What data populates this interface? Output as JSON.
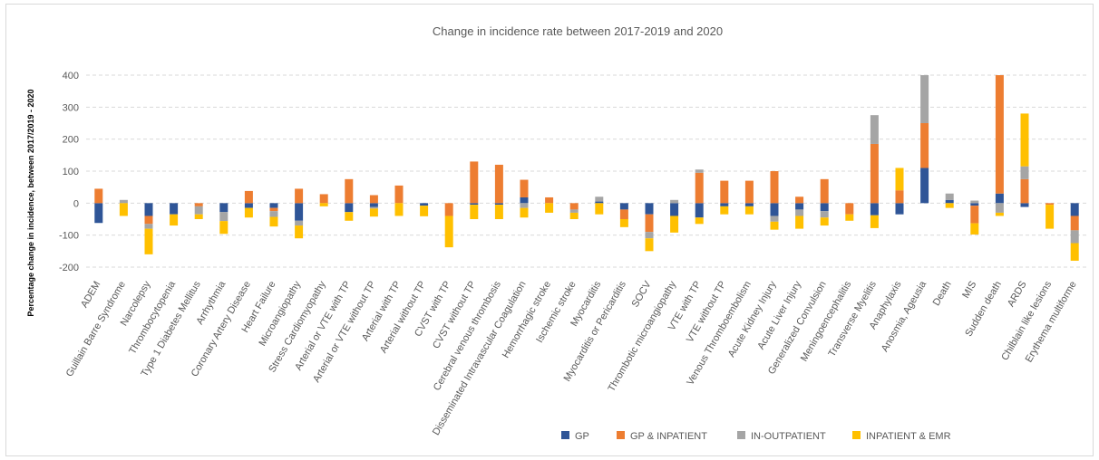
{
  "chart_data": {
    "type": "bar",
    "stacked": true,
    "title": "Change in incidence rate between 2017-2019 and 2020",
    "ylabel": "Percentage change in incidence, between 2017/2019 - 2020",
    "ylim": [
      -200,
      400
    ],
    "yticks": [
      -200,
      -100,
      0,
      100,
      200,
      300,
      400
    ],
    "grid": true,
    "legend_position": "bottom",
    "colors": {
      "GP": "#2f5597",
      "GP & INPATIENT": "#ed7d31",
      "IN-OUTPATIENT": "#a5a5a5",
      "INPATIENT & EMR": "#ffc000"
    },
    "categories": [
      "ADEM",
      "Guillain Barre Syndrome",
      "Narcolepsy",
      "Thrombocytopenia",
      "Type 1 Diabetes Mellitus",
      "Arrhythmia",
      "Coronary Artery Disease",
      "Heart Failure",
      "Microangiopathy",
      "Stress Cardiomyopathy",
      "Arterial or VTE with TP",
      "Arterial or VTE without TP",
      "Arterial with TP",
      "Arterial without TP",
      "CVST with TP",
      "CVST without TP",
      "Cerebral venous thrombosis",
      "Disseminated Intravascular Coagulation",
      "Hemorrhagic stroke",
      "Ischemic stroke",
      "Myocarditis",
      "Myocarditis or Pericarditis",
      "SOCV",
      "Thrombotic microangiopathy",
      "VTE with TP",
      "VTE without TP",
      "Venous Thromboembolism",
      "Acute Kidney Injury",
      "Acute Liver Injury",
      "Generalized Convulsion",
      "Meningoencephalitis",
      "Transverse Myelitis",
      "Anaphylaxis",
      "Anosmia, Ageusia",
      "Death",
      "MIS",
      "Sudden death",
      "ARDS",
      "Chilblain like lesions",
      "Erythema multiforme"
    ],
    "series": [
      {
        "name": "GP",
        "values": [
          -62,
          0,
          -40,
          -35,
          0,
          -28,
          -15,
          -15,
          -55,
          0,
          -28,
          -12,
          0,
          -8,
          0,
          -5,
          -5,
          18,
          0,
          0,
          5,
          -20,
          -35,
          -40,
          -45,
          -10,
          -10,
          -40,
          -20,
          -25,
          0,
          -38,
          -35,
          110,
          10,
          -8,
          30,
          -12,
          0,
          -40
        ]
      },
      {
        "name": "GP & INPATIENT",
        "values": [
          45,
          0,
          -25,
          0,
          -10,
          0,
          38,
          -10,
          45,
          28,
          75,
          25,
          55,
          0,
          -40,
          130,
          120,
          55,
          18,
          -20,
          0,
          -30,
          -55,
          0,
          95,
          70,
          70,
          100,
          20,
          75,
          -35,
          185,
          40,
          140,
          0,
          -55,
          370,
          75,
          -5,
          -45
        ]
      },
      {
        "name": "IN-OUTPATIENT",
        "values": [
          0,
          10,
          -15,
          0,
          -25,
          -28,
          0,
          -18,
          -15,
          0,
          0,
          -5,
          0,
          0,
          0,
          0,
          0,
          -15,
          0,
          -10,
          15,
          0,
          -20,
          10,
          10,
          0,
          0,
          -18,
          -20,
          -20,
          0,
          90,
          0,
          150,
          20,
          8,
          -30,
          40,
          0,
          -40
        ]
      },
      {
        "name": "INPATIENT & EMR",
        "values": [
          0,
          -40,
          -80,
          -35,
          -15,
          -40,
          -30,
          -30,
          -40,
          -10,
          -27,
          -25,
          -40,
          -33,
          -98,
          -45,
          -45,
          -30,
          -30,
          -20,
          -35,
          -25,
          -40,
          -52,
          -20,
          -25,
          -25,
          -25,
          -40,
          -25,
          -20,
          -40,
          70,
          0,
          -15,
          -35,
          -10,
          165,
          -75,
          -55
        ]
      }
    ]
  }
}
